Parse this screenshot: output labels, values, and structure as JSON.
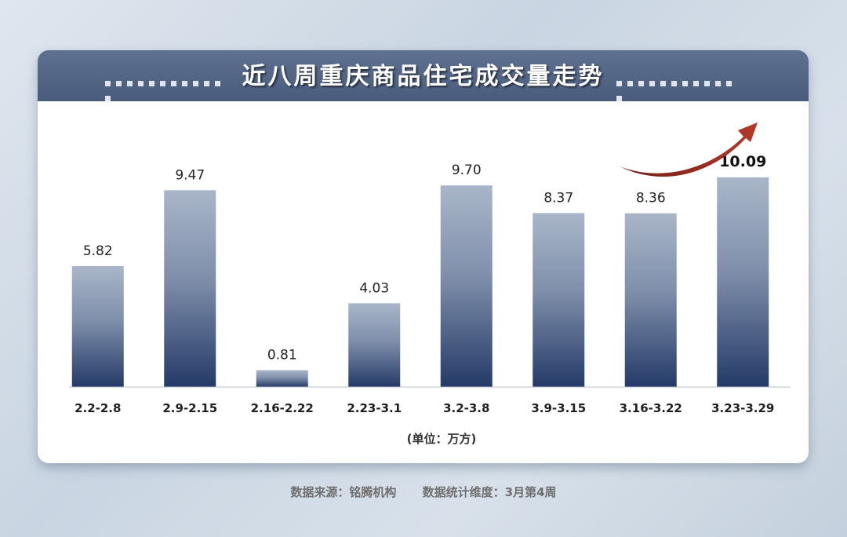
{
  "chart_data": {
    "type": "bar",
    "title": "近八周重庆商品住宅成交量走势",
    "categories": [
      "2.2-2.8",
      "2.9-2.15",
      "2.16-2.22",
      "2.23-3.1",
      "3.2-3.8",
      "3.9-3.15",
      "3.16-3.22",
      "3.23-3.29"
    ],
    "values": [
      5.82,
      9.47,
      0.81,
      4.03,
      9.7,
      8.37,
      8.36,
      10.09
    ],
    "value_labels": [
      "5.82",
      "9.47",
      "0.81",
      "4.03",
      "9.70",
      "8.37",
      "8.36",
      "10.09"
    ],
    "unit_label": "(单位：万方)",
    "highlight_index": 7,
    "ylim": [
      0,
      10.5
    ],
    "grid": false,
    "colors": {
      "bar_top": "#a9b6c9",
      "bar_bottom": "#243a67",
      "arrow": "#a22a20",
      "header": "#536482"
    }
  },
  "footer": {
    "source": "数据来源：铭腾机构",
    "period": "数据统计维度：3月第4周"
  }
}
